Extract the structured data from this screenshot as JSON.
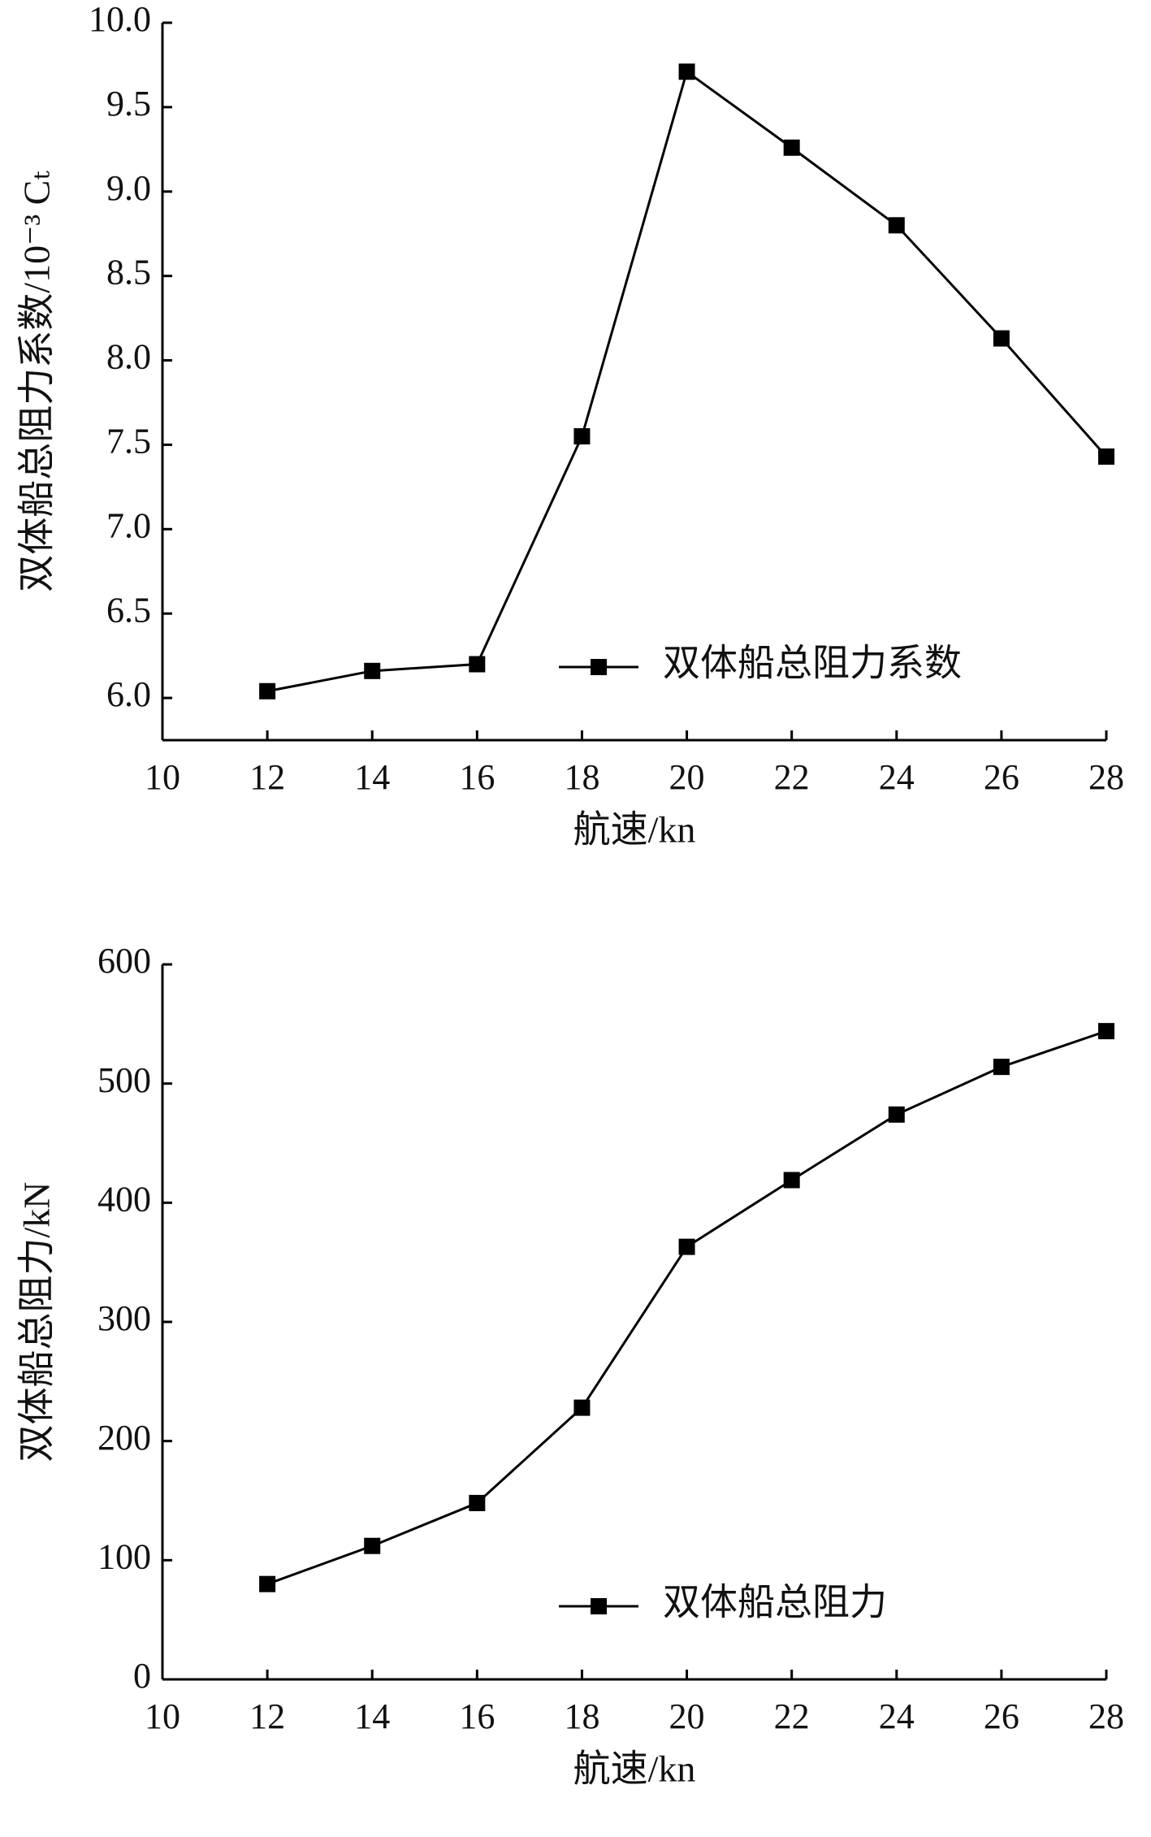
{
  "chart_data": [
    {
      "type": "line",
      "ylabel": "双体船总阻力系数/10⁻³ Cₜ",
      "xlabel": "航速/kn",
      "x": [
        12,
        14,
        16,
        18,
        20,
        22,
        24,
        26,
        28
      ],
      "series": [
        {
          "name": "双体船总阻力系数",
          "color": "#000000",
          "values": [
            6.04,
            6.16,
            6.2,
            7.55,
            9.71,
            9.26,
            8.8,
            8.13,
            7.43
          ]
        }
      ],
      "xlim": [
        10,
        28
      ],
      "xticks": [
        10,
        12,
        14,
        16,
        18,
        20,
        22,
        24,
        26,
        28
      ],
      "ylim": [
        5.75,
        10
      ],
      "yticks": [
        {
          "value": 6,
          "label": "6.0"
        },
        6.5,
        {
          "value": 7,
          "label": "7.0"
        },
        7.5,
        {
          "value": 8,
          "label": "8.0"
        },
        8.5,
        {
          "value": 9,
          "label": "9.0"
        },
        9.5,
        {
          "value": 10,
          "label": "10.0"
        }
      ],
      "grid": false,
      "legend": "lower right"
    },
    {
      "type": "line",
      "ylabel": "双体船总阻力/kN",
      "xlabel": "航速/kn",
      "x": [
        12,
        14,
        16,
        18,
        20,
        22,
        24,
        26,
        28
      ],
      "series": [
        {
          "name": "双体船总阻力",
          "color": "#000000",
          "values": [
            80,
            112,
            148,
            228,
            363,
            419,
            474,
            514,
            544
          ]
        }
      ],
      "xlim": [
        10,
        28
      ],
      "xticks": [
        10,
        12,
        14,
        16,
        18,
        20,
        22,
        24,
        26,
        28
      ],
      "ylim": [
        0,
        600
      ],
      "yticks": [
        0,
        100,
        200,
        300,
        400,
        500,
        600
      ],
      "grid": false,
      "legend": "lower right"
    }
  ]
}
